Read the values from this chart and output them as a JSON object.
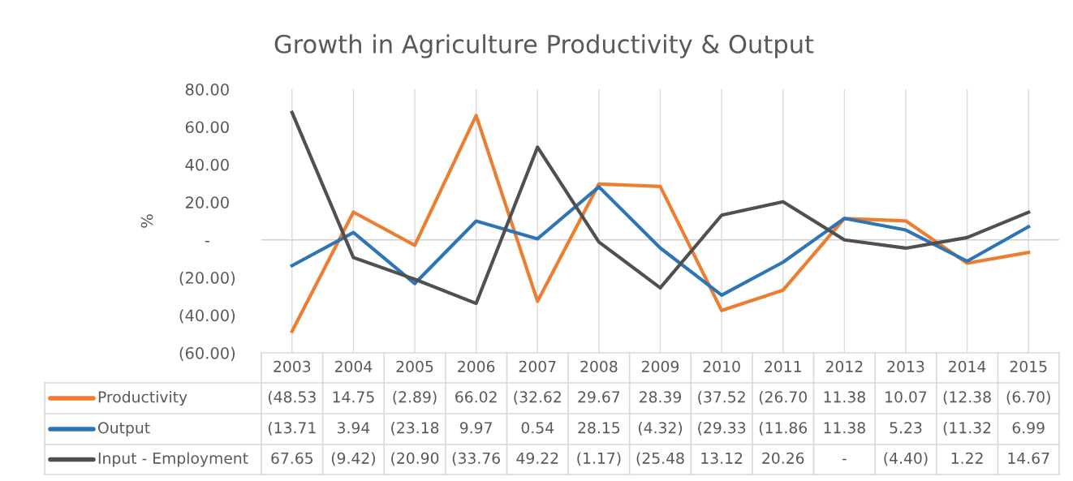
{
  "chart_data": {
    "type": "line",
    "title": "Growth in Agriculture Productivity & Output",
    "ylabel": "%",
    "categories": [
      "2003",
      "2004",
      "2005",
      "2006",
      "2007",
      "2008",
      "2009",
      "2010",
      "2011",
      "2012",
      "2013",
      "2014",
      "2015"
    ],
    "series": [
      {
        "name": "Productivity",
        "color": "#ed7d31",
        "values": [
          -48.53,
          14.75,
          -2.89,
          66.02,
          -32.62,
          29.67,
          28.39,
          -37.52,
          -26.7,
          11.38,
          10.07,
          -12.38,
          -6.7
        ],
        "value_labels": [
          "(48.53",
          "14.75",
          "(2.89)",
          "66.02",
          "(32.62",
          "29.67",
          "28.39",
          "(37.52",
          "(26.70",
          "11.38",
          "10.07",
          "(12.38",
          "(6.70)"
        ]
      },
      {
        "name": "Output",
        "color": "#2e75b6",
        "values": [
          -13.71,
          3.94,
          -23.18,
          9.97,
          0.54,
          28.15,
          -4.32,
          -29.33,
          -11.86,
          11.38,
          5.23,
          -11.32,
          6.99
        ],
        "value_labels": [
          "(13.71",
          "3.94",
          "(23.18",
          "9.97",
          "0.54",
          "28.15",
          "(4.32)",
          "(29.33",
          "(11.86",
          "11.38",
          "5.23",
          "(11.32",
          "6.99"
        ]
      },
      {
        "name": "Input - Employment",
        "color": "#505050",
        "values": [
          67.65,
          -9.42,
          -20.9,
          -33.76,
          49.22,
          -1.17,
          -25.48,
          13.12,
          20.26,
          0,
          -4.4,
          1.22,
          14.67
        ],
        "value_labels": [
          "67.65",
          "(9.42)",
          "(20.90",
          "(33.76",
          "49.22",
          "(1.17)",
          "(25.48",
          "13.12",
          "20.26",
          "-",
          "(4.40)",
          "1.22",
          "14.67"
        ]
      }
    ],
    "ylim": [
      -60,
      80
    ],
    "yticks": [
      {
        "value": -60,
        "label": "(60.00)"
      },
      {
        "value": -40,
        "label": "(40.00)"
      },
      {
        "value": -20,
        "label": "(20.00)"
      },
      {
        "value": 0,
        "label": "-"
      },
      {
        "value": 20,
        "label": "20.00"
      },
      {
        "value": 40,
        "label": "40.00"
      },
      {
        "value": 60,
        "label": "60.00"
      },
      {
        "value": 80,
        "label": "80.00"
      }
    ],
    "grid": "x",
    "legend": "bottom",
    "marker": "none",
    "line_style": "solid"
  }
}
